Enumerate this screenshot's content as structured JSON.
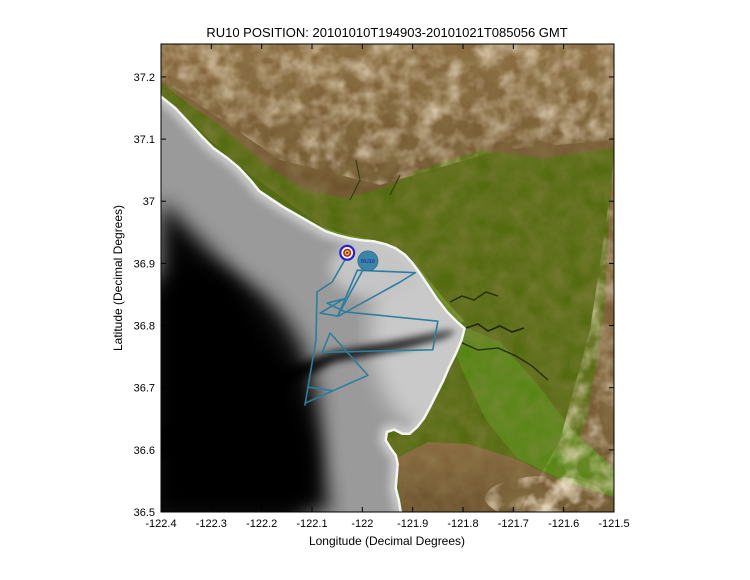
{
  "chart_data": {
    "type": "line",
    "title": "RU10 POSITION: 20101010T194903-20101021T085056 GMT",
    "xlabel": "Longitude (Decimal Degrees)",
    "ylabel": "Latitude (Decimal Degrees)",
    "xlim": [
      -122.4,
      -121.5
    ],
    "ylim": [
      36.5,
      37.253
    ],
    "grid": false,
    "legend": "none",
    "xticks": {
      "values": [
        -122.4,
        -122.3,
        -122.2,
        -122.1,
        -122.0,
        -121.9,
        -121.8,
        -121.7,
        -121.6,
        -121.5
      ],
      "labels": [
        "-122.4",
        "-122.3",
        "-122.2",
        "-122.1",
        "-122",
        "-121.9",
        "-121.8",
        "-121.7",
        "-121.6",
        "-121.5"
      ]
    },
    "yticks": {
      "values": [
        36.5,
        36.6,
        36.7,
        36.8,
        36.9,
        37.0,
        37.1,
        37.2
      ],
      "labels": [
        "36.5",
        "36.6",
        "36.7",
        "36.8",
        "36.9",
        "37",
        "37.1",
        "37.2"
      ]
    },
    "series": [
      {
        "name": "ru10-glider-track",
        "color": "#2a7f9f",
        "points": [
          [
            -122.03,
            36.912
          ],
          [
            -122.06,
            36.87
          ],
          [
            -122.09,
            36.854
          ],
          [
            -122.092,
            36.777
          ],
          [
            -122.114,
            36.672
          ],
          [
            -122.108,
            36.701
          ],
          [
            -122.058,
            36.695
          ],
          [
            -122.114,
            36.675
          ],
          [
            -122.07,
            36.691
          ],
          [
            -121.989,
            36.72
          ],
          [
            -122.064,
            36.788
          ],
          [
            -122.08,
            36.757
          ],
          [
            -121.86,
            36.761
          ],
          [
            -121.85,
            36.807
          ],
          [
            -122.034,
            36.822
          ],
          [
            -122.07,
            36.836
          ],
          [
            -122.036,
            36.843
          ],
          [
            -122.084,
            36.82
          ],
          [
            -122.048,
            36.815
          ],
          [
            -121.925,
            36.87
          ],
          [
            -121.895,
            36.885
          ],
          [
            -122.01,
            36.889
          ],
          [
            -122.048,
            36.817
          ],
          [
            -121.989,
            36.904
          ]
        ]
      }
    ],
    "markers": [
      {
        "name": "waypoint-bullseye",
        "lon": -122.03,
        "lat": 36.917
      },
      {
        "name": "glider-current-position",
        "lon": -121.989,
        "lat": 36.904,
        "label": "RU10",
        "color": "#3d85a6"
      }
    ]
  },
  "map_colors": {
    "deep_ocean": "#000000",
    "mid_ocean": "#9a9a9a",
    "shelf": "#cccccc",
    "shore_rim": "#ffffff",
    "land_base": "#556b10",
    "lowland_green": "#6f9526",
    "valley_green": "#568614",
    "mountain_brown": "#7b5f38",
    "peak_tan": "#e3c79b",
    "track_teal": "#2a7f9f"
  }
}
